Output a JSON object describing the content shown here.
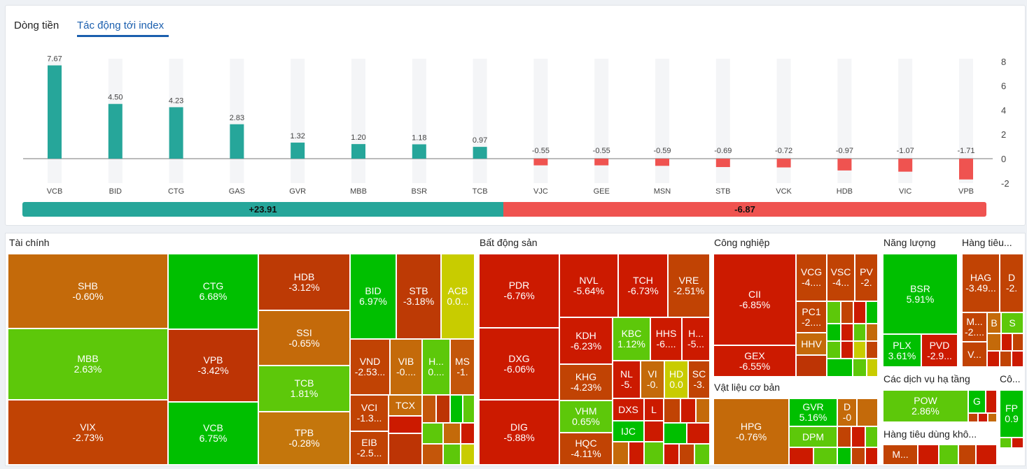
{
  "tabs": [
    {
      "label": "Dòng tiền",
      "active": false
    },
    {
      "label": "Tác động tới index",
      "active": true
    }
  ],
  "chart_data": {
    "type": "bar",
    "categories": [
      "VCB",
      "BID",
      "CTG",
      "GAS",
      "GVR",
      "MBB",
      "BSR",
      "TCB",
      "VJC",
      "GEE",
      "MSN",
      "STB",
      "VCK",
      "HDB",
      "VIC",
      "VPB"
    ],
    "values": [
      7.67,
      4.5,
      4.23,
      2.83,
      1.32,
      1.2,
      1.18,
      0.97,
      -0.55,
      -0.55,
      -0.59,
      -0.69,
      -0.72,
      -0.97,
      -1.07,
      -1.71
    ],
    "value_labels": [
      "7.67",
      "4.50",
      "4.23",
      "2.83",
      "1.32",
      "1.20",
      "1.18",
      "0.97",
      "-0.55",
      "-0.55",
      "-0.59",
      "-0.69",
      "-0.72",
      "-0.97",
      "-1.07",
      "-1.71"
    ],
    "ylim": [
      -2,
      8
    ],
    "yticks": [
      8,
      6,
      4,
      2,
      0,
      -2
    ],
    "grid": true,
    "colors": {
      "positive": "#26a69a",
      "negative": "#ef5350"
    }
  },
  "summary": {
    "positive": "+23.91",
    "negative": "-6.87"
  },
  "heatmap": {
    "sectors": [
      {
        "title": "Tài chính"
      },
      {
        "title": "Bất động sản"
      },
      {
        "title": "Công nghiệp"
      },
      {
        "title": "Năng lượng"
      },
      {
        "title": "Hàng tiêu..."
      },
      {
        "title": "Vật liệu cơ bản"
      },
      {
        "title": "Các dịch vụ hạ tầng"
      },
      {
        "title": "Cô..."
      },
      {
        "title": "Hàng tiêu dùng khô..."
      }
    ],
    "tiles": [
      {
        "sym": "SHB",
        "chg": "-0.60%"
      },
      {
        "sym": "MBB",
        "chg": "2.63%"
      },
      {
        "sym": "VIX",
        "chg": "-2.73%"
      },
      {
        "sym": "CTG",
        "chg": "6.68%"
      },
      {
        "sym": "VPB",
        "chg": "-3.42%"
      },
      {
        "sym": "VCB",
        "chg": "6.75%"
      },
      {
        "sym": "HDB",
        "chg": "-3.12%"
      },
      {
        "sym": "SSI",
        "chg": "-0.65%"
      },
      {
        "sym": "TCB",
        "chg": "1.81%"
      },
      {
        "sym": "TPB",
        "chg": "-0.28%"
      },
      {
        "sym": "BID",
        "chg": "6.97%"
      },
      {
        "sym": "STB",
        "chg": "-3.18%"
      },
      {
        "sym": "ACB",
        "chg": "0.0..."
      },
      {
        "sym": "VND",
        "chg": "-2.53..."
      },
      {
        "sym": "VIB",
        "chg": "-0...."
      },
      {
        "sym": "H...",
        "chg": "0...."
      },
      {
        "sym": "MS",
        "chg": "-1."
      },
      {
        "sym": "VCI",
        "chg": "-1.3..."
      },
      {
        "sym": "TCX",
        "chg": ""
      },
      {
        "sym": "EIB",
        "chg": "-2.5..."
      },
      {
        "sym": "PDR",
        "chg": "-6.76%"
      },
      {
        "sym": "DXG",
        "chg": "-6.06%"
      },
      {
        "sym": "DIG",
        "chg": "-5.88%"
      },
      {
        "sym": "NVL",
        "chg": "-5.64%"
      },
      {
        "sym": "TCH",
        "chg": "-6.73%"
      },
      {
        "sym": "VRE",
        "chg": "-2.51%"
      },
      {
        "sym": "KDH",
        "chg": "-6.23%"
      },
      {
        "sym": "KBC",
        "chg": "1.12%"
      },
      {
        "sym": "HHS",
        "chg": "-6...."
      },
      {
        "sym": "H...",
        "chg": "-5..."
      },
      {
        "sym": "KHG",
        "chg": "-4.23%"
      },
      {
        "sym": "NL",
        "chg": "-5."
      },
      {
        "sym": "VI",
        "chg": "-0."
      },
      {
        "sym": "HD",
        "chg": "0.0"
      },
      {
        "sym": "SC",
        "chg": "-3."
      },
      {
        "sym": "VHM",
        "chg": "0.65%"
      },
      {
        "sym": "DXS",
        "chg": ""
      },
      {
        "sym": "L",
        "chg": ""
      },
      {
        "sym": "HQC",
        "chg": "-4.11%"
      },
      {
        "sym": "IJC",
        "chg": ""
      },
      {
        "sym": "CII",
        "chg": "-6.85%"
      },
      {
        "sym": "GEX",
        "chg": "-6.55%"
      },
      {
        "sym": "VCG",
        "chg": "-4...."
      },
      {
        "sym": "VSC",
        "chg": "-4..."
      },
      {
        "sym": "PV",
        "chg": "-2."
      },
      {
        "sym": "PC1",
        "chg": "-2...."
      },
      {
        "sym": "HHV",
        "chg": ""
      },
      {
        "sym": "HPG",
        "chg": "-0.76%"
      },
      {
        "sym": "GVR",
        "chg": "5.16%"
      },
      {
        "sym": "D",
        "chg": "-0"
      },
      {
        "sym": "DPM",
        "chg": ""
      },
      {
        "sym": "BSR",
        "chg": "5.91%"
      },
      {
        "sym": "PLX",
        "chg": "3.61%"
      },
      {
        "sym": "PVD",
        "chg": "-2.9..."
      },
      {
        "sym": "HAG",
        "chg": "-3.49..."
      },
      {
        "sym": "D",
        "chg": "-2."
      },
      {
        "sym": "M...",
        "chg": "-2...."
      },
      {
        "sym": "B",
        "chg": ""
      },
      {
        "sym": "S",
        "chg": ""
      },
      {
        "sym": "V...",
        "chg": ""
      },
      {
        "sym": "POW",
        "chg": "2.86%"
      },
      {
        "sym": "G",
        "chg": ""
      },
      {
        "sym": "FP",
        "chg": "0.9"
      },
      {
        "sym": "M...",
        "chg": ""
      }
    ]
  }
}
